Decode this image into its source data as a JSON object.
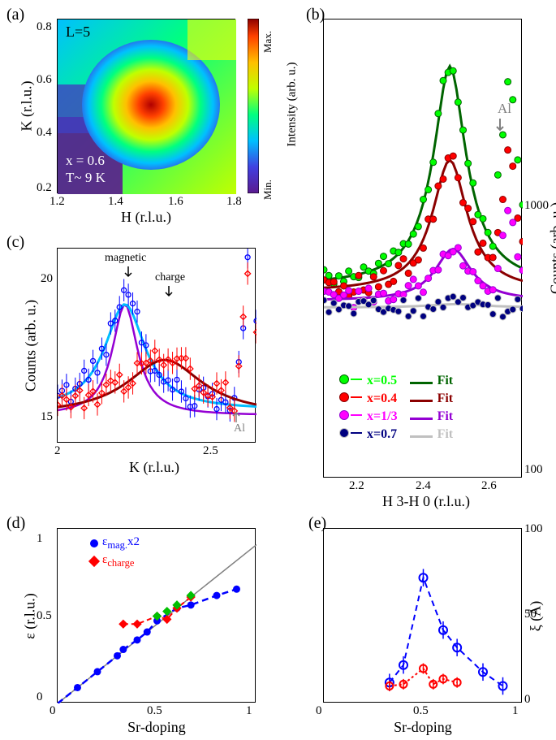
{
  "panel_a": {
    "label": "(a)",
    "annotation_top": "L=5",
    "annotation_bottom": "x = 0.6\nT~ 9 K",
    "xlabel": "H (r.l.u.)",
    "ylabel": "K (r.l.u.)",
    "colorbar_label": "Intensity (arb. u.)",
    "colorbar_max": "Max.",
    "colorbar_min": "Min.",
    "xlim": [
      1.2,
      1.8
    ],
    "ylim": [
      0.2,
      0.8
    ],
    "xticks": [
      1.2,
      1.4,
      1.6,
      1.8
    ],
    "yticks": [
      0.2,
      0.4,
      0.6,
      0.8
    ],
    "heatmap_colors": [
      "#5b1a8e",
      "#4040c0",
      "#00a0ff",
      "#00ffc0",
      "#80ff00",
      "#ffff00",
      "#ff8000",
      "#ff0000",
      "#8b0000"
    ]
  },
  "panel_b": {
    "label": "(b)",
    "xlabel": "H 3-H 0 (r.l.u.)",
    "ylabel": "Counts (arb. u.)",
    "xlim": [
      2.1,
      2.7
    ],
    "ylim": [
      100,
      3000
    ],
    "xticks": [
      2.2,
      2.4,
      2.6
    ],
    "yticks": [
      100,
      1000
    ],
    "annotation_al": "Al",
    "log_scale": true,
    "legend": {
      "items": [
        {
          "marker_color": "#00ff00",
          "line_color": "#006400",
          "label": "x=0.5",
          "fit_label": "Fit"
        },
        {
          "marker_color": "#ff0000",
          "line_color": "#8b0000",
          "label": "x=0.4",
          "fit_label": "Fit"
        },
        {
          "marker_color": "#ff00ff",
          "line_color": "#9400d3",
          "label": "x=1/3",
          "fit_label": "Fit"
        },
        {
          "marker_color": "#000080",
          "line_color": "#c0c0c0",
          "label": "x=0.7",
          "fit_label": "Fit"
        }
      ]
    },
    "series": [
      {
        "color": "#00ff00",
        "fit_color": "#006400",
        "peak_x": 2.48,
        "peak_y": 2500,
        "baseline": 450,
        "width": 0.04
      },
      {
        "color": "#ff0000",
        "fit_color": "#8b0000",
        "peak_x": 2.48,
        "peak_y": 1200,
        "baseline": 430,
        "width": 0.05
      },
      {
        "color": "#ff00ff",
        "fit_color": "#9400d3",
        "peak_x": 2.49,
        "peak_y": 600,
        "baseline": 400,
        "width": 0.06
      },
      {
        "color": "#000080",
        "fit_color": "#c0c0c0",
        "peak_x": 2.5,
        "peak_y": 390,
        "baseline": 380,
        "width": 0.1
      }
    ]
  },
  "panel_c": {
    "label": "(c)",
    "xlabel": "K (r.l.u.)",
    "ylabel": "Counts (arb. u.)",
    "xlim": [
      2.0,
      2.65
    ],
    "ylim": [
      14,
      21
    ],
    "xticks": [
      2,
      2.5
    ],
    "yticks": [
      15,
      20
    ],
    "annotation_magnetic": "magnetic",
    "annotation_charge": "charge",
    "annotation_al": "Al",
    "series": [
      {
        "color": "#0000ff",
        "fit_color": "#00bfff",
        "peak_x": 2.22,
        "peak_y": 19,
        "baseline": 15.2,
        "width": 0.08
      },
      {
        "color": "#ff0000",
        "fit_color": "#8b0000",
        "peak_x": 2.35,
        "peak_y": 17,
        "baseline": 15,
        "width": 0.15
      }
    ],
    "purple_fit_color": "#9400d3"
  },
  "panel_d": {
    "label": "(d)",
    "xlabel": "Sr-doping",
    "ylabel": "ε (r.l.u.)",
    "xlim": [
      0.0,
      1.0
    ],
    "ylim": [
      0.0,
      1.1
    ],
    "xticks": [
      0.0,
      0.5,
      1.0
    ],
    "yticks": [
      0.0,
      0.5,
      1.0
    ],
    "legend": {
      "eps_mag": {
        "label": "ε",
        "sub": "mag.",
        "suffix": "x2",
        "color": "#0000ff",
        "shape": "circle"
      },
      "eps_charge": {
        "label": "ε",
        "sub": "charge",
        "color": "#ff0000",
        "shape": "diamond"
      }
    },
    "line_color": "#808080",
    "dash_color_blue": "#0000ff",
    "dash_color_red": "#ff0000",
    "green_point_color": "#00c000",
    "data_blue": [
      [
        0.1,
        0.1
      ],
      [
        0.2,
        0.2
      ],
      [
        0.3,
        0.3
      ],
      [
        0.33,
        0.34
      ],
      [
        0.4,
        0.4
      ],
      [
        0.45,
        0.45
      ],
      [
        0.5,
        0.52
      ],
      [
        0.6,
        0.6
      ],
      [
        0.67,
        0.62
      ],
      [
        0.8,
        0.68
      ],
      [
        0.9,
        0.72
      ]
    ],
    "data_red": [
      [
        0.33,
        0.5
      ],
      [
        0.4,
        0.5
      ],
      [
        0.5,
        0.55
      ],
      [
        0.55,
        0.53
      ],
      [
        0.6,
        0.6
      ],
      [
        0.67,
        0.67
      ]
    ],
    "data_green": [
      [
        0.5,
        0.55
      ],
      [
        0.55,
        0.58
      ],
      [
        0.6,
        0.62
      ],
      [
        0.67,
        0.68
      ]
    ]
  },
  "panel_e": {
    "label": "(e)",
    "xlabel": "Sr-doping",
    "ylabel": "ξ (Å)",
    "xlim": [
      0.0,
      1.0
    ],
    "ylim": [
      0,
      100
    ],
    "xticks": [
      0.0,
      0.5,
      1.0
    ],
    "yticks": [
      0,
      50,
      100
    ],
    "dash_color_blue": "#0000ff",
    "dash_color_red": "#ff0000",
    "data_blue": [
      [
        0.33,
        12
      ],
      [
        0.4,
        22
      ],
      [
        0.5,
        72
      ],
      [
        0.6,
        42
      ],
      [
        0.67,
        32
      ],
      [
        0.8,
        18
      ],
      [
        0.9,
        10
      ]
    ],
    "data_red": [
      [
        0.33,
        10
      ],
      [
        0.4,
        11
      ],
      [
        0.5,
        20
      ],
      [
        0.55,
        11
      ],
      [
        0.6,
        14
      ],
      [
        0.67,
        12
      ]
    ]
  }
}
